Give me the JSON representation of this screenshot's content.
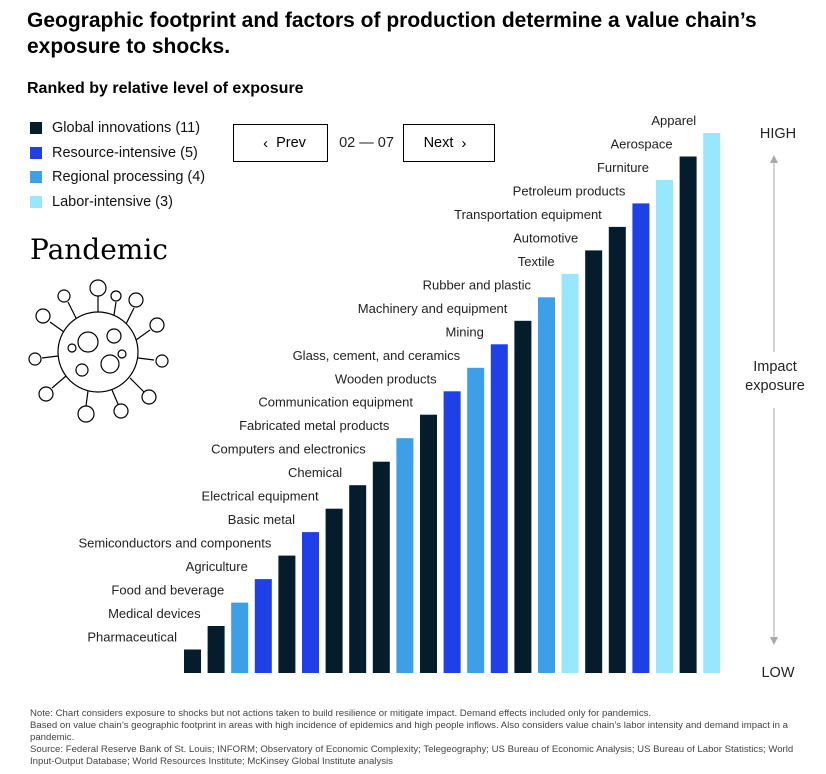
{
  "header": {
    "title": "Geographic footprint and factors of production determine a value chain’s exposure to shocks.",
    "subtitle": "Ranked by relative level of exposure"
  },
  "legend": [
    {
      "label": "Global innovations (11)",
      "color": "#051c2c"
    },
    {
      "label": "Resource-intensive (5)",
      "color": "#1f40e6"
    },
    {
      "label": "Regional processing (4)",
      "color": "#3c9fe8"
    },
    {
      "label": "Labor-intensive (3)",
      "color": "#99e6ff"
    }
  ],
  "nav": {
    "prev_label": "Prev",
    "next_label": "Next",
    "counter": "02 — 07",
    "prev_icon": "chevron-left-icon",
    "next_icon": "chevron-right-icon"
  },
  "panel": {
    "label": "Pandemic",
    "icon": "virus-icon"
  },
  "chart_data": {
    "type": "bar",
    "title": "",
    "xlabel": "",
    "ylabel": "Impact exposure",
    "y_axis": {
      "high_label": "HIGH",
      "low_label": "LOW",
      "label": "Impact exposure"
    },
    "ylim": [
      0,
      23
    ],
    "value_meaning": "rank of relative exposure, 1 = lowest",
    "categories": [
      "Pharmaceutical",
      "Medical devices",
      "Food and beverage",
      "Agriculture",
      "Semiconductors and components",
      "Basic metal",
      "Electrical equipment",
      "Chemical",
      "Computers and electronics",
      "Fabricated metal products",
      "Communication equipment",
      "Wooden products",
      "Glass, cement, and ceramics",
      "Mining",
      "Machinery and equipment",
      "Rubber and plastic",
      "Textile",
      "Automotive",
      "Transportation equipment",
      "Petroleum products",
      "Furniture",
      "Aerospace",
      "Apparel"
    ],
    "values": [
      1,
      2,
      3,
      4,
      5,
      6,
      7,
      8,
      9,
      10,
      11,
      12,
      13,
      14,
      15,
      16,
      17,
      18,
      19,
      20,
      21,
      22,
      23
    ],
    "groups": [
      "Global innovations",
      "Global innovations",
      "Regional processing",
      "Resource-intensive",
      "Global innovations",
      "Resource-intensive",
      "Global innovations",
      "Global innovations",
      "Global innovations",
      "Regional processing",
      "Global innovations",
      "Resource-intensive",
      "Regional processing",
      "Resource-intensive",
      "Global innovations",
      "Regional processing",
      "Labor-intensive",
      "Global innovations",
      "Global innovations",
      "Resource-intensive",
      "Labor-intensive",
      "Global innovations",
      "Labor-intensive"
    ],
    "group_colors": {
      "Global innovations": "#051c2c",
      "Resource-intensive": "#1f40e6",
      "Regional processing": "#3c9fe8",
      "Labor-intensive": "#99e6ff"
    },
    "axis_color": "#aaaaaa",
    "grid": false,
    "legend_position": "top-left"
  },
  "notes": [
    "Note: Chart considers exposure to shocks but not actions taken to build resilience or mitigate impact. Demand effects included only for pandemics.",
    "Based on value chain’s geographic footprint in areas with high incidence of epidemics and high people inflows. Also considers value chain’s labor intensity and demand impact in a pandemic.",
    "Source: Federal Reserve Bank of St. Louis; INFORM; Observatory of Economic Complexity; Telegeography; US Bureau of Economic Analysis; US Bureau of Labor Statistics; World Input-Output Database; World Resources Institute; McKinsey Global Institute analysis"
  ]
}
